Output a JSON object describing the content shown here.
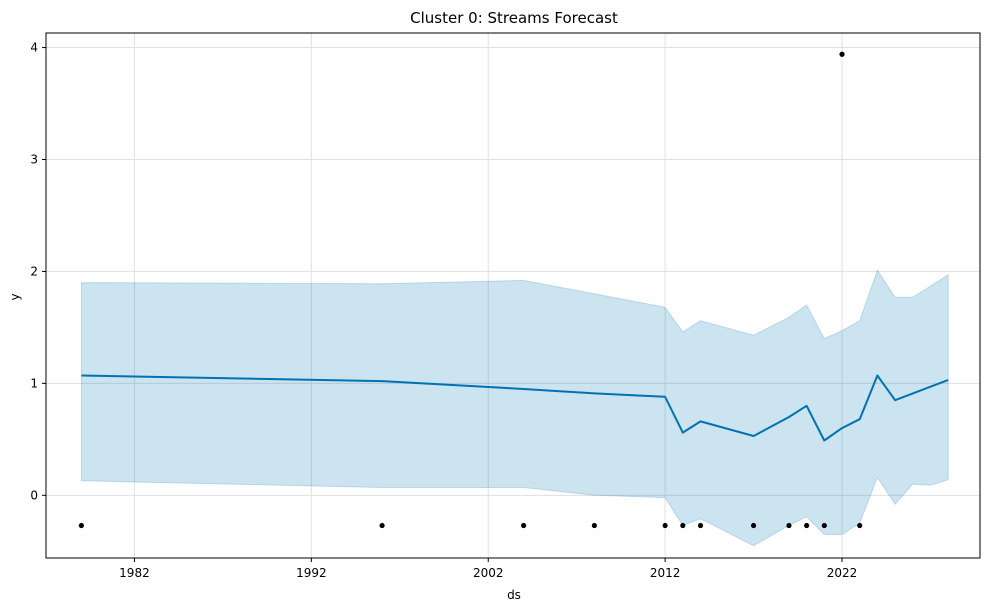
{
  "chart_data": {
    "type": "line",
    "title": "Cluster 0: Streams Forecast",
    "xlabel": "ds",
    "ylabel": "y",
    "x_ticks": [
      1982,
      1992,
      2002,
      2012,
      2022
    ],
    "y_ticks": [
      0,
      1,
      2,
      3,
      4
    ],
    "xlim": [
      1977.0,
      2029.8
    ],
    "ylim": [
      -0.56,
      4.13
    ],
    "grid": true,
    "colors": {
      "forecast_line": "#0072B2",
      "uncertainty_band": "#0072B2",
      "points": "#000000"
    },
    "forecast": {
      "x": [
        1979,
        1996,
        2004,
        2008,
        2012,
        2013,
        2014,
        2017,
        2019,
        2020,
        2021,
        2022,
        2023,
        2024,
        2025,
        2026,
        2027,
        2028
      ],
      "yhat": [
        1.07,
        1.02,
        0.95,
        0.91,
        0.88,
        0.56,
        0.66,
        0.53,
        0.7,
        0.8,
        0.49,
        0.6,
        0.68,
        1.07,
        0.85,
        0.91,
        0.97,
        1.03
      ],
      "yhat_upper": [
        1.9,
        1.89,
        1.92,
        1.8,
        1.68,
        1.46,
        1.56,
        1.43,
        1.59,
        1.7,
        1.4,
        1.47,
        1.56,
        2.01,
        1.77,
        1.77,
        1.87,
        1.97
      ],
      "yhat_lower": [
        0.13,
        0.07,
        0.07,
        0.0,
        -0.02,
        -0.27,
        -0.21,
        -0.45,
        -0.27,
        -0.19,
        -0.35,
        -0.35,
        -0.25,
        0.16,
        -0.08,
        0.1,
        0.09,
        0.14
      ]
    },
    "observed": {
      "x": [
        1979,
        1996,
        2004,
        2008,
        2012,
        2013,
        2014,
        2017,
        2019,
        2020,
        2021,
        2022,
        2023
      ],
      "y": [
        -0.27,
        -0.27,
        -0.27,
        -0.27,
        -0.27,
        -0.27,
        -0.27,
        -0.27,
        -0.27,
        -0.27,
        -0.27,
        3.94,
        -0.27
      ]
    }
  }
}
